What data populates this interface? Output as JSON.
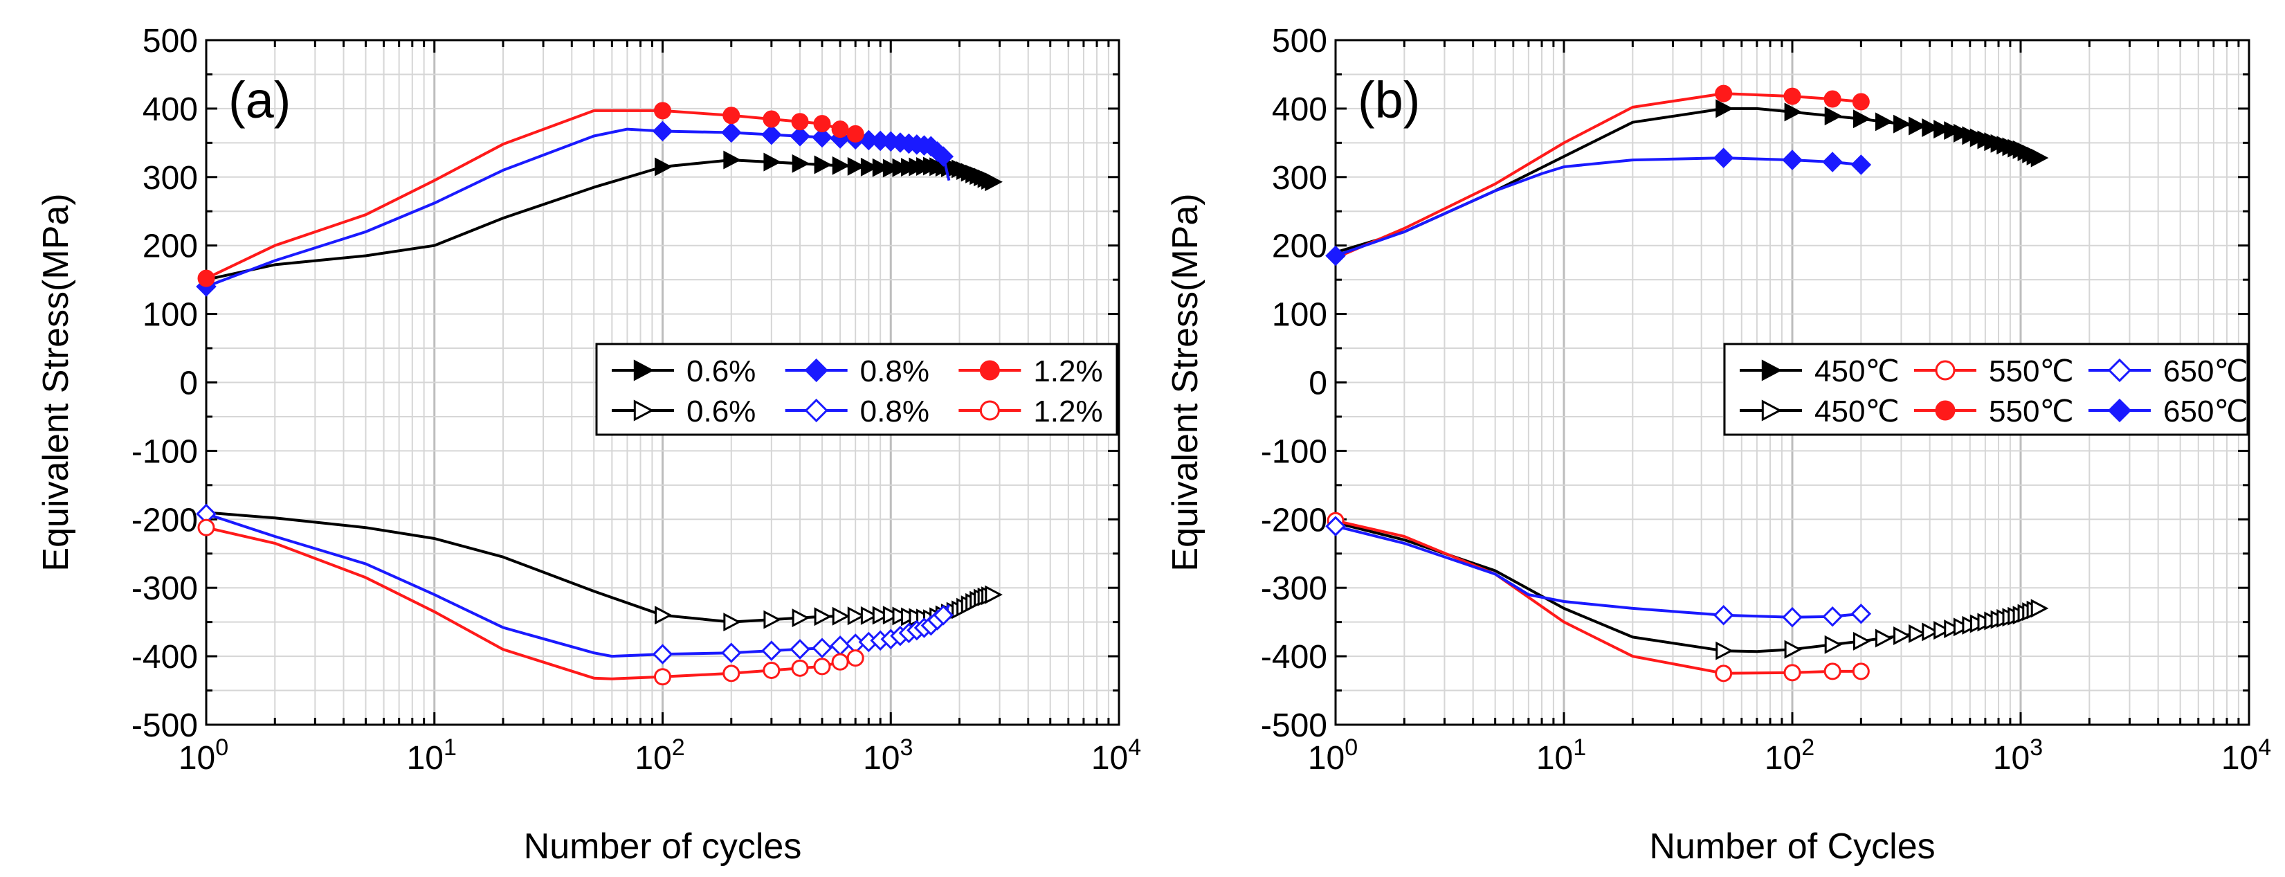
{
  "chart_data": [
    {
      "type": "line",
      "panel_label": "(a)",
      "xlabel": "Number of cycles",
      "ylabel": "Equivalent Stress(MPa)",
      "xscale": "log",
      "xlim": [
        1,
        10000
      ],
      "ylim": [
        -500,
        500
      ],
      "x_ticks": [
        {
          "base": "10",
          "exp": "0",
          "value": 1
        },
        {
          "base": "10",
          "exp": "1",
          "value": 10
        },
        {
          "base": "10",
          "exp": "2",
          "value": 100
        },
        {
          "base": "10",
          "exp": "3",
          "value": 1000
        },
        {
          "base": "10",
          "exp": "4",
          "value": 10000
        }
      ],
      "y_ticks": [
        {
          "label": "500",
          "value": 500
        },
        {
          "label": "400",
          "value": 400
        },
        {
          "label": "300",
          "value": 300
        },
        {
          "label": "200",
          "value": 200
        },
        {
          "label": "100",
          "value": 100
        },
        {
          "label": "0",
          "value": 0
        },
        {
          "label": "-100",
          "value": -100
        },
        {
          "label": "-200",
          "value": -200
        },
        {
          "label": "-300",
          "value": -300
        },
        {
          "label": "-400",
          "value": -400
        },
        {
          "label": "-500",
          "value": -500
        }
      ],
      "grid": true,
      "legend_position": "right-middle",
      "legend": [
        {
          "label": "0.6%",
          "color": "#000000",
          "marker": "triangle-right",
          "filled": true
        },
        {
          "label": "0.8%",
          "color": "#1a1aff",
          "marker": "diamond",
          "filled": true
        },
        {
          "label": "1.2%",
          "color": "#ff1a1a",
          "marker": "circle",
          "filled": true
        },
        {
          "label": "0.6%",
          "color": "#000000",
          "marker": "triangle-right",
          "filled": false
        },
        {
          "label": "0.8%",
          "color": "#1a1aff",
          "marker": "diamond",
          "filled": false
        },
        {
          "label": "1.2%",
          "color": "#ff1a1a",
          "marker": "circle",
          "filled": false
        }
      ],
      "series": [
        {
          "name": "0.6% max",
          "color": "#000000",
          "marker": "triangle-right",
          "filled": true,
          "x": [
            1,
            2,
            5,
            10,
            20,
            50,
            100,
            200,
            500,
            1000,
            1500,
            2000,
            2500,
            2800
          ],
          "y": [
            150,
            172,
            185,
            200,
            240,
            285,
            315,
            325,
            318,
            313,
            316,
            312,
            300,
            293
          ],
          "marker_x": [
            100,
            200,
            300,
            400,
            500,
            600,
            700,
            800,
            900,
            1000,
            1100,
            1200,
            1300,
            1400,
            1500,
            1600,
            1700,
            1800,
            1900,
            2000,
            2100,
            2200,
            2300,
            2400,
            2500,
            2600,
            2700,
            2800
          ]
        },
        {
          "name": "0.6% min",
          "color": "#000000",
          "marker": "triangle-right",
          "filled": false,
          "x": [
            1,
            2,
            5,
            10,
            20,
            50,
            100,
            200,
            500,
            1000,
            1500,
            2000,
            2500,
            2800
          ],
          "y": [
            -190,
            -198,
            -212,
            -228,
            -255,
            -305,
            -340,
            -350,
            -342,
            -340,
            -345,
            -332,
            -315,
            -310
          ],
          "marker_x": [
            100,
            200,
            300,
            400,
            500,
            600,
            700,
            800,
            900,
            1000,
            1100,
            1200,
            1300,
            1400,
            1500,
            1600,
            1700,
            1800,
            1900,
            2000,
            2100,
            2200,
            2300,
            2400,
            2500,
            2600,
            2700,
            2800
          ]
        },
        {
          "name": "0.8% max",
          "color": "#1a1aff",
          "marker": "diamond",
          "filled": true,
          "x": [
            1,
            2,
            5,
            10,
            20,
            50,
            70,
            100,
            200,
            500,
            1000,
            1500,
            1700,
            1800
          ],
          "y": [
            140,
            178,
            220,
            262,
            310,
            360,
            370,
            367,
            365,
            358,
            352,
            345,
            330,
            295
          ],
          "marker_x": [
            1,
            100,
            200,
            300,
            400,
            500,
            600,
            700,
            800,
            900,
            1000,
            1100,
            1200,
            1300,
            1400,
            1500,
            1600,
            1700
          ]
        },
        {
          "name": "0.8% min",
          "color": "#1a1aff",
          "marker": "diamond",
          "filled": false,
          "x": [
            1,
            2,
            5,
            10,
            20,
            50,
            60,
            100,
            200,
            500,
            1000,
            1500,
            1700,
            1800
          ],
          "y": [
            -192,
            -225,
            -265,
            -310,
            -358,
            -395,
            -400,
            -397,
            -395,
            -388,
            -375,
            -355,
            -340,
            -325
          ],
          "marker_x": [
            1,
            100,
            200,
            300,
            400,
            500,
            600,
            700,
            800,
            900,
            1000,
            1100,
            1200,
            1300,
            1400,
            1500,
            1600,
            1700
          ]
        },
        {
          "name": "1.2% max",
          "color": "#ff1a1a",
          "marker": "circle",
          "filled": true,
          "x": [
            1,
            2,
            5,
            10,
            20,
            50,
            100,
            200,
            500,
            750
          ],
          "y": [
            152,
            200,
            245,
            295,
            348,
            397,
            397,
            390,
            378,
            360
          ],
          "marker_x": [
            1,
            100,
            200,
            300,
            400,
            500,
            600,
            700
          ]
        },
        {
          "name": "1.2% min",
          "color": "#ff1a1a",
          "marker": "circle",
          "filled": false,
          "x": [
            1,
            2,
            5,
            10,
            20,
            50,
            60,
            100,
            200,
            500,
            750
          ],
          "y": [
            -212,
            -235,
            -285,
            -335,
            -390,
            -432,
            -433,
            -430,
            -425,
            -415,
            -400
          ],
          "marker_x": [
            1,
            100,
            200,
            300,
            400,
            500,
            600,
            700
          ]
        }
      ]
    },
    {
      "type": "line",
      "panel_label": "(b)",
      "xlabel": "Number of Cycles",
      "ylabel": "Equivalent Stress(MPa)",
      "xscale": "log",
      "xlim": [
        1,
        10000
      ],
      "ylim": [
        -500,
        500
      ],
      "x_ticks": [
        {
          "base": "10",
          "exp": "0",
          "value": 1
        },
        {
          "base": "10",
          "exp": "1",
          "value": 10
        },
        {
          "base": "10",
          "exp": "2",
          "value": 100
        },
        {
          "base": "10",
          "exp": "3",
          "value": 1000
        },
        {
          "base": "10",
          "exp": "4",
          "value": 10000
        }
      ],
      "y_ticks": [
        {
          "label": "500",
          "value": 500
        },
        {
          "label": "400",
          "value": 400
        },
        {
          "label": "300",
          "value": 300
        },
        {
          "label": "200",
          "value": 200
        },
        {
          "label": "100",
          "value": 100
        },
        {
          "label": "0",
          "value": 0
        },
        {
          "label": "-100",
          "value": -100
        },
        {
          "label": "-200",
          "value": -200
        },
        {
          "label": "-300",
          "value": -300
        },
        {
          "label": "-400",
          "value": -400
        },
        {
          "label": "-500",
          "value": -500
        }
      ],
      "grid": true,
      "legend_position": "right-middle",
      "legend": [
        {
          "label": "450℃",
          "color": "#000000",
          "marker": "triangle-right",
          "filled": true
        },
        {
          "label": "550℃",
          "color": "#ff1a1a",
          "marker": "circle",
          "filled": false
        },
        {
          "label": "650℃",
          "color": "#1a1aff",
          "marker": "diamond",
          "filled": false
        },
        {
          "label": "450℃",
          "color": "#000000",
          "marker": "triangle-right",
          "filled": false
        },
        {
          "label": "550℃",
          "color": "#ff1a1a",
          "marker": "circle",
          "filled": true
        },
        {
          "label": "650℃",
          "color": "#1a1aff",
          "marker": "diamond",
          "filled": true
        }
      ],
      "series": [
        {
          "name": "450℃ max",
          "color": "#000000",
          "marker": "triangle-right",
          "filled": true,
          "x": [
            1,
            2,
            5,
            10,
            20,
            50,
            70,
            100,
            200,
            500,
            1000,
            1200
          ],
          "y": [
            190,
            220,
            280,
            330,
            380,
            400,
            400,
            395,
            385,
            368,
            340,
            328
          ],
          "marker_x": [
            50,
            100,
            150,
            200,
            250,
            300,
            350,
            400,
            450,
            500,
            550,
            600,
            650,
            700,
            750,
            800,
            850,
            900,
            950,
            1000,
            1050,
            1100,
            1150,
            1200
          ]
        },
        {
          "name": "450℃ min",
          "color": "#000000",
          "marker": "triangle-right",
          "filled": false,
          "x": [
            1,
            2,
            5,
            10,
            20,
            50,
            70,
            100,
            200,
            500,
            1000,
            1200
          ],
          "y": [
            -205,
            -230,
            -275,
            -330,
            -372,
            -392,
            -393,
            -390,
            -378,
            -360,
            -340,
            -330
          ],
          "marker_x": [
            50,
            100,
            150,
            200,
            250,
            300,
            350,
            400,
            450,
            500,
            550,
            600,
            650,
            700,
            750,
            800,
            850,
            900,
            950,
            1000,
            1050,
            1100,
            1150,
            1200
          ]
        },
        {
          "name": "550℃ max",
          "color": "#ff1a1a",
          "marker": "circle",
          "filled": true,
          "x": [
            1,
            2,
            5,
            10,
            20,
            50,
            100,
            150,
            200
          ],
          "y": [
            182,
            225,
            290,
            350,
            402,
            422,
            418,
            414,
            410
          ],
          "marker_x": [
            50,
            100,
            150,
            200
          ]
        },
        {
          "name": "550℃ min",
          "color": "#ff1a1a",
          "marker": "circle",
          "filled": false,
          "x": [
            1,
            2,
            5,
            10,
            20,
            50,
            100,
            150,
            200
          ],
          "y": [
            -202,
            -225,
            -280,
            -350,
            -400,
            -425,
            -424,
            -422,
            -422
          ],
          "marker_x": [
            1,
            50,
            100,
            150,
            200
          ]
        },
        {
          "name": "650℃ max",
          "color": "#1a1aff",
          "marker": "diamond",
          "filled": true,
          "x": [
            1,
            2,
            5,
            8,
            10,
            20,
            50,
            100,
            150,
            200
          ],
          "y": [
            185,
            220,
            280,
            305,
            315,
            325,
            328,
            325,
            322,
            318
          ],
          "marker_x": [
            1,
            50,
            100,
            150,
            200
          ]
        },
        {
          "name": "650℃ min",
          "color": "#1a1aff",
          "marker": "diamond",
          "filled": false,
          "x": [
            1,
            2,
            5,
            7,
            10,
            20,
            50,
            100,
            150,
            200
          ],
          "y": [
            -210,
            -235,
            -280,
            -310,
            -320,
            -330,
            -340,
            -343,
            -342,
            -338
          ],
          "marker_x": [
            1,
            50,
            100,
            150,
            200
          ]
        }
      ]
    }
  ]
}
